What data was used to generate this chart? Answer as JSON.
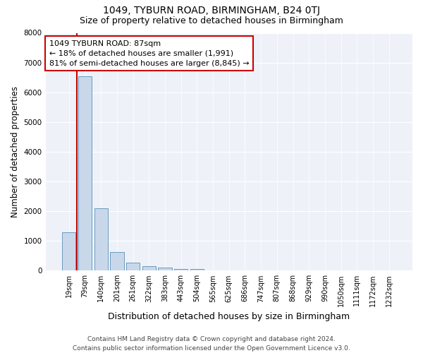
{
  "title": "1049, TYBURN ROAD, BIRMINGHAM, B24 0TJ",
  "subtitle": "Size of property relative to detached houses in Birmingham",
  "xlabel": "Distribution of detached houses by size in Birmingham",
  "ylabel": "Number of detached properties",
  "footnote1": "Contains HM Land Registry data © Crown copyright and database right 2024.",
  "footnote2": "Contains public sector information licensed under the Open Government Licence v3.0.",
  "annotation_title": "1049 TYBURN ROAD: 87sqm",
  "annotation_line1": "← 18% of detached houses are smaller (1,991)",
  "annotation_line2": "81% of semi-detached houses are larger (8,845) →",
  "bar_color": "#c8d8ea",
  "bar_edge_color": "#6a9bbf",
  "vline_color": "#cc0000",
  "annotation_box_edgecolor": "#cc0000",
  "background_color": "#eef2f8",
  "categories": [
    "19sqm",
    "79sqm",
    "140sqm",
    "201sqm",
    "261sqm",
    "322sqm",
    "383sqm",
    "443sqm",
    "504sqm",
    "565sqm",
    "625sqm",
    "686sqm",
    "747sqm",
    "807sqm",
    "868sqm",
    "929sqm",
    "990sqm",
    "1050sqm",
    "1111sqm",
    "1172sqm",
    "1232sqm"
  ],
  "values": [
    1300,
    6550,
    2100,
    620,
    260,
    140,
    95,
    55,
    60,
    0,
    0,
    0,
    0,
    0,
    0,
    0,
    0,
    0,
    0,
    0,
    0
  ],
  "ylim": [
    0,
    8000
  ],
  "yticks": [
    0,
    1000,
    2000,
    3000,
    4000,
    5000,
    6000,
    7000,
    8000
  ],
  "vline_bin_index": 1,
  "title_fontsize": 10,
  "subtitle_fontsize": 9,
  "xlabel_fontsize": 9,
  "ylabel_fontsize": 8.5,
  "tick_fontsize": 7,
  "annotation_fontsize": 8,
  "footnote_fontsize": 6.5
}
